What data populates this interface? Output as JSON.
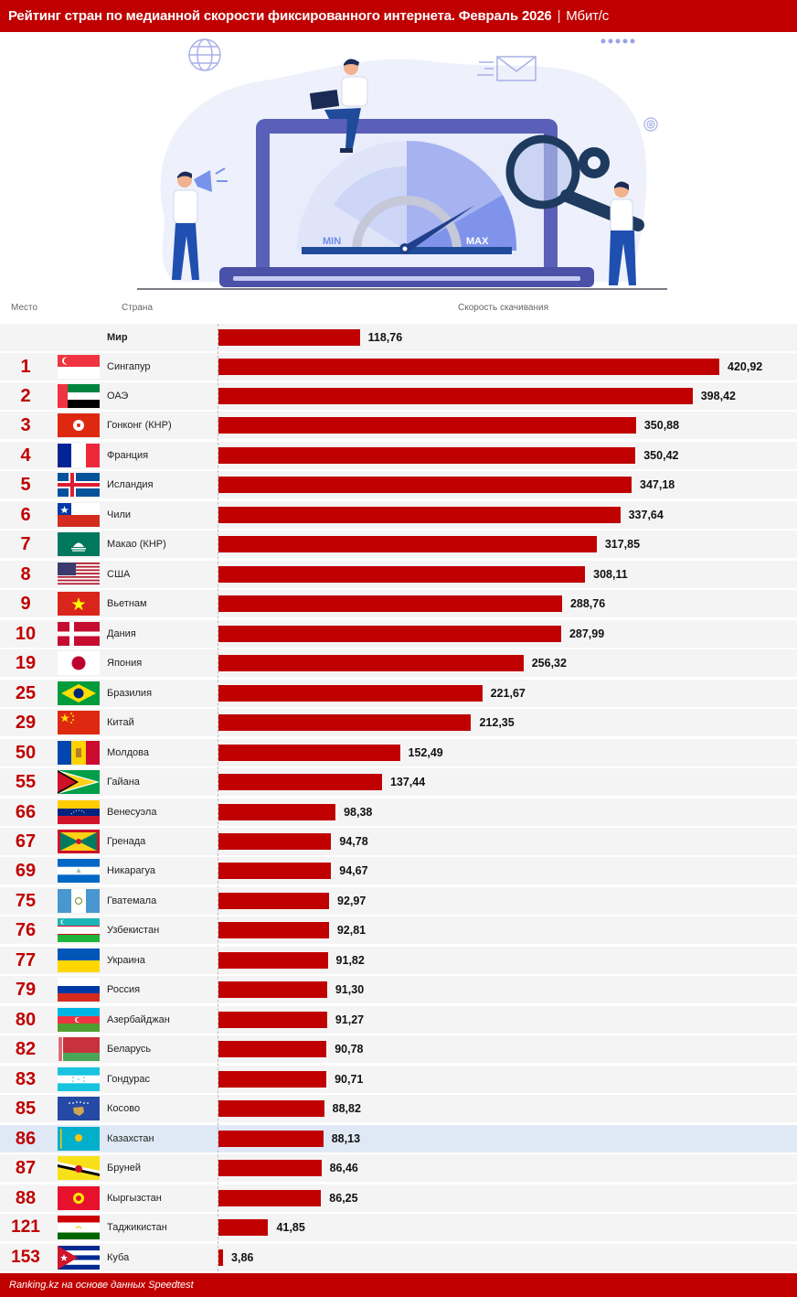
{
  "header": {
    "title": "Рейтинг стран по медианной скорости фиксированного интернета. Февраль 2026",
    "separator": "|",
    "unit": "Мбит/с"
  },
  "illustration": {
    "gauge_min_label": "MIN",
    "gauge_max_label": "MAX"
  },
  "columns": {
    "rank": "Место",
    "country": "Страна",
    "speed": "Скорость скачивания"
  },
  "world": {
    "country": "Мир",
    "value": "118,76",
    "num": 118.76
  },
  "rows": [
    {
      "rank": "1",
      "country": "Сингапур",
      "value": "420,92",
      "num": 420.92,
      "flag": "sg"
    },
    {
      "rank": "2",
      "country": "ОАЭ",
      "value": "398,42",
      "num": 398.42,
      "flag": "ae"
    },
    {
      "rank": "3",
      "country": "Гонконг (КНР)",
      "value": "350,88",
      "num": 350.88,
      "flag": "hk"
    },
    {
      "rank": "4",
      "country": "Франция",
      "value": "350,42",
      "num": 350.42,
      "flag": "fr"
    },
    {
      "rank": "5",
      "country": "Исландия",
      "value": "347,18",
      "num": 347.18,
      "flag": "is"
    },
    {
      "rank": "6",
      "country": "Чили",
      "value": "337,64",
      "num": 337.64,
      "flag": "cl"
    },
    {
      "rank": "7",
      "country": "Макао (КНР)",
      "value": "317,85",
      "num": 317.85,
      "flag": "mo"
    },
    {
      "rank": "8",
      "country": "США",
      "value": "308,11",
      "num": 308.11,
      "flag": "us"
    },
    {
      "rank": "9",
      "country": "Вьетнам",
      "value": "288,76",
      "num": 288.76,
      "flag": "vn"
    },
    {
      "rank": "10",
      "country": "Дания",
      "value": "287,99",
      "num": 287.99,
      "flag": "dk"
    },
    {
      "rank": "19",
      "country": "Япония",
      "value": "256,32",
      "num": 256.32,
      "flag": "jp"
    },
    {
      "rank": "25",
      "country": "Бразилия",
      "value": "221,67",
      "num": 221.67,
      "flag": "br"
    },
    {
      "rank": "29",
      "country": "Китай",
      "value": "212,35",
      "num": 212.35,
      "flag": "cn"
    },
    {
      "rank": "50",
      "country": "Молдова",
      "value": "152,49",
      "num": 152.49,
      "flag": "md"
    },
    {
      "rank": "55",
      "country": "Гайана",
      "value": "137,44",
      "num": 137.44,
      "flag": "gy"
    },
    {
      "rank": "66",
      "country": "Венесуэла",
      "value": "98,38",
      "num": 98.38,
      "flag": "ve"
    },
    {
      "rank": "67",
      "country": "Гренада",
      "value": "94,78",
      "num": 94.78,
      "flag": "gd"
    },
    {
      "rank": "69",
      "country": "Никарагуа",
      "value": "94,67",
      "num": 94.67,
      "flag": "ni"
    },
    {
      "rank": "75",
      "country": "Гватемала",
      "value": "92,97",
      "num": 92.97,
      "flag": "gt"
    },
    {
      "rank": "76",
      "country": "Узбекистан",
      "value": "92,81",
      "num": 92.81,
      "flag": "uz"
    },
    {
      "rank": "77",
      "country": "Украина",
      "value": "91,82",
      "num": 91.82,
      "flag": "ua"
    },
    {
      "rank": "79",
      "country": "Россия",
      "value": "91,30",
      "num": 91.3,
      "flag": "ru"
    },
    {
      "rank": "80",
      "country": "Азербайджан",
      "value": "91,27",
      "num": 91.27,
      "flag": "az"
    },
    {
      "rank": "82",
      "country": "Беларусь",
      "value": "90,78",
      "num": 90.78,
      "flag": "by"
    },
    {
      "rank": "83",
      "country": "Гондурас",
      "value": "90,71",
      "num": 90.71,
      "flag": "hn"
    },
    {
      "rank": "85",
      "country": "Косово",
      "value": "88,82",
      "num": 88.82,
      "flag": "xk"
    },
    {
      "rank": "86",
      "country": "Казахстан",
      "value": "88,13",
      "num": 88.13,
      "flag": "kz",
      "highlight": true
    },
    {
      "rank": "87",
      "country": "Бруней",
      "value": "86,46",
      "num": 86.46,
      "flag": "bn"
    },
    {
      "rank": "88",
      "country": "Кыргызстан",
      "value": "86,25",
      "num": 86.25,
      "flag": "kg"
    },
    {
      "rank": "121",
      "country": "Таджикистан",
      "value": "41,85",
      "num": 41.85,
      "flag": "tj"
    },
    {
      "rank": "153",
      "country": "Куба",
      "value": "3,86",
      "num": 3.86,
      "flag": "cu"
    }
  ],
  "footer": {
    "source": "Ranking.kz на основе данных Speedtest"
  },
  "colors": {
    "accent": "#c00000",
    "row_bg": "#f4f4f4",
    "highlight_bg": "#dfe9f5"
  },
  "chart_data": {
    "type": "bar",
    "orientation": "horizontal",
    "title": "Рейтинг стран по медианной скорости фиксированного интернета. Февраль 2026 | Мбит/с",
    "xlabel": "Скорость скачивания",
    "ylabel": "Страна",
    "categories": [
      "Мир",
      "Сингапур",
      "ОАЭ",
      "Гонконг (КНР)",
      "Франция",
      "Исландия",
      "Чили",
      "Макао (КНР)",
      "США",
      "Вьетнам",
      "Дания",
      "Япония",
      "Бразилия",
      "Китай",
      "Молдова",
      "Гайана",
      "Венесуэла",
      "Гренада",
      "Никарагуа",
      "Гватемала",
      "Узбекистан",
      "Украина",
      "Россия",
      "Азербайджан",
      "Беларусь",
      "Гондурас",
      "Косово",
      "Казахстан",
      "Бруней",
      "Кыргызстан",
      "Таджикистан",
      "Куба"
    ],
    "ranks": [
      "",
      "1",
      "2",
      "3",
      "4",
      "5",
      "6",
      "7",
      "8",
      "9",
      "10",
      "19",
      "25",
      "29",
      "50",
      "55",
      "66",
      "67",
      "69",
      "75",
      "76",
      "77",
      "79",
      "80",
      "82",
      "83",
      "85",
      "86",
      "87",
      "88",
      "121",
      "153"
    ],
    "values": [
      118.76,
      420.92,
      398.42,
      350.88,
      350.42,
      347.18,
      337.64,
      317.85,
      308.11,
      288.76,
      287.99,
      256.32,
      221.67,
      212.35,
      152.49,
      137.44,
      98.38,
      94.78,
      94.67,
      92.97,
      92.81,
      91.82,
      91.3,
      91.27,
      90.78,
      90.71,
      88.82,
      88.13,
      86.46,
      86.25,
      41.85,
      3.86
    ],
    "unit": "Мбит/с",
    "highlighted_category": "Казахстан",
    "grid": false,
    "legend": "none",
    "source": "Ranking.kz на основе данных Speedtest"
  }
}
